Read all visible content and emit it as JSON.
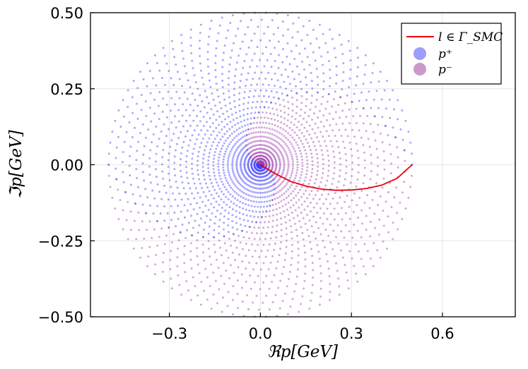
{
  "chart_data": {
    "type": "scatter",
    "title": "",
    "xlabel": "ℜp[GeV]",
    "ylabel": "ℑp[GeV]",
    "xlim": [
      -0.56,
      0.84
    ],
    "ylim": [
      -0.5,
      0.5
    ],
    "x_ticks": [
      -0.3,
      0.0,
      0.3,
      0.6
    ],
    "x_tick_labels": [
      "−0.3",
      "0.0",
      "0.3",
      "0.6"
    ],
    "y_ticks": [
      0.5,
      0.25,
      0.0,
      -0.25,
      -0.5
    ],
    "y_tick_labels": [
      "0.50",
      "0.25",
      "0.00",
      "−0.25",
      "−0.50"
    ],
    "grid": true,
    "legend_position": "top-right",
    "legend": [
      {
        "name": "l ∈ Γ_SMC",
        "kind": "line",
        "color": "#e8000b"
      },
      {
        "name": "p⁺",
        "kind": "marker",
        "color": "#9d9dfa"
      },
      {
        "name": "p⁻",
        "kind": "marker",
        "color": "#cc99cc"
      }
    ],
    "series": [
      {
        "name": "l ∈ Γ_SMC",
        "kind": "line",
        "color": "#e8000b",
        "points": [
          [
            0.0,
            0.0
          ],
          [
            0.05,
            -0.03
          ],
          [
            0.1,
            -0.055
          ],
          [
            0.15,
            -0.07
          ],
          [
            0.2,
            -0.08
          ],
          [
            0.25,
            -0.084
          ],
          [
            0.3,
            -0.083
          ],
          [
            0.35,
            -0.078
          ],
          [
            0.4,
            -0.067
          ],
          [
            0.45,
            -0.045
          ],
          [
            0.5,
            0.0
          ]
        ]
      },
      {
        "name": "p⁺",
        "kind": "scatter",
        "color": "#4040ff",
        "pattern": "spiral arms, upper half-plane, radius 0 to 0.5 (origin dense)",
        "radius_max": 0.5
      },
      {
        "name": "p⁻",
        "kind": "scatter",
        "color": "#a040b0",
        "pattern": "spiral arms, lower half-plane, radius 0 to 0.5 (origin dense)",
        "radius_max": 0.5
      }
    ]
  }
}
